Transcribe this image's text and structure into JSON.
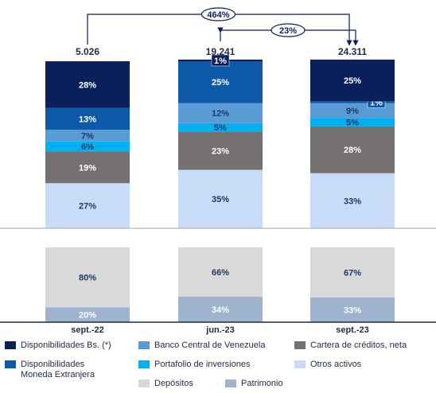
{
  "chart_data": {
    "type": "stacked-bar",
    "categories": [
      "sept.-22",
      "jun.-23",
      "sept.-23"
    ],
    "total_labels": [
      "5.026",
      "19.241",
      "24.311"
    ],
    "annotations": [
      {
        "text": "464%",
        "from": 0,
        "to": 2
      },
      {
        "text": "23%",
        "from": 1,
        "to": 2
      }
    ],
    "ylim": [
      0,
      100
    ],
    "panels": [
      {
        "series": [
          {
            "name": "Otros activos",
            "color": "#c9dcf7",
            "values": [
              27,
              35,
              33
            ],
            "value_labels": [
              "27%",
              "35%",
              "33%"
            ]
          },
          {
            "name": "Cartera de créditos, neta",
            "color": "#767171",
            "values": [
              19,
              23,
              28
            ],
            "value_labels": [
              "19%",
              "23%",
              "28%"
            ]
          },
          {
            "name": "Portafolio de inversiones",
            "color": "#00b0f0",
            "values": [
              6,
              5,
              5
            ],
            "value_labels": [
              "6%",
              "5%",
              "5%"
            ]
          },
          {
            "name": "Banco Central de Venezuela",
            "color": "#5b9bd5",
            "values": [
              7,
              12,
              9
            ],
            "value_labels": [
              "7%",
              "12%",
              "9%"
            ]
          },
          {
            "name": "Disponibilidades Moneda Extranjera",
            "color": "#0f5aa8",
            "values": [
              13,
              25,
              1
            ],
            "value_labels": [
              "13%",
              "25%",
              "1%"
            ]
          },
          {
            "name": "Disponibilidades Bs. (*)",
            "color": "#0a1f5c",
            "values": [
              28,
              1,
              25
            ],
            "value_labels": [
              "28%",
              "1%",
              "25%"
            ]
          }
        ]
      },
      {
        "series": [
          {
            "name": "Patrimonio",
            "color": "#9fb3cf",
            "values": [
              20,
              34,
              33
            ],
            "value_labels": [
              "20%",
              "34%",
              "33%"
            ]
          },
          {
            "name": "Depósitos",
            "color": "#d9d9d9",
            "values": [
              80,
              66,
              67
            ],
            "value_labels": [
              "80%",
              "66%",
              "67%"
            ]
          }
        ]
      }
    ]
  }
}
